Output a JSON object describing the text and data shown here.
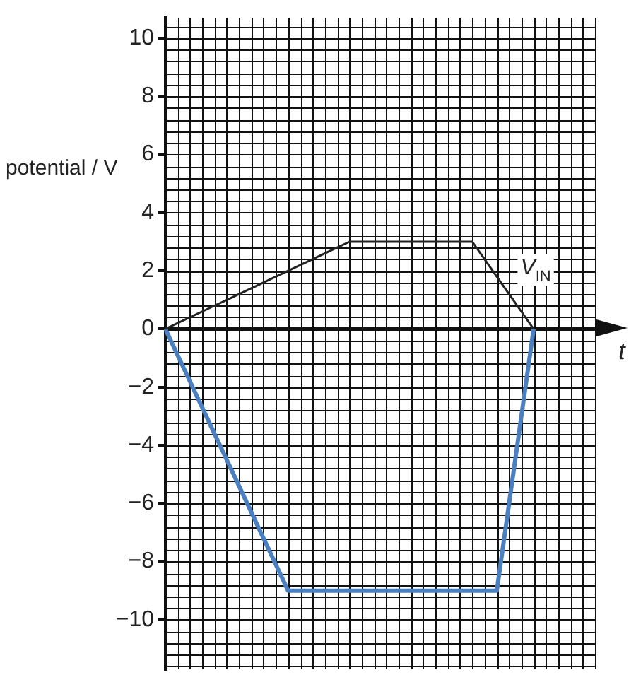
{
  "chart_data": {
    "type": "line",
    "ylabel": "potential / V",
    "xlabel": "t",
    "categories": [
      null,
      null,
      null,
      null,
      null,
      null,
      null,
      null,
      null,
      null,
      null,
      null,
      null,
      null,
      null,
      null,
      null,
      null,
      null,
      null,
      null,
      null,
      null,
      null,
      null,
      null,
      null,
      null,
      null,
      null,
      null,
      null,
      null,
      null,
      null,
      null
    ],
    "series": [
      {
        "name": "V$_{IN}$",
        "color": "#222222",
        "values": [
          0,
          0.2,
          0.4,
          0.6,
          0.8,
          1,
          1.2,
          1.4,
          1.6,
          1.8,
          2,
          2.2,
          2.4,
          2.6,
          2.8,
          3,
          3,
          3,
          3,
          3,
          3,
          3,
          3,
          3,
          3,
          3,
          2.4,
          1.8,
          1.2,
          0.6,
          0,
          null,
          null,
          null,
          null,
          null
        ]
      },
      {
        "color": "#4a7fc0",
        "values": [
          0,
          -0.9,
          -1.8,
          -2.7,
          -3.6,
          -4.5,
          -5.4,
          -6.3,
          -7.2,
          -8.1,
          -9,
          -9,
          -9,
          -9,
          -9,
          -9,
          -9,
          -9,
          -9,
          -9,
          -9,
          -9,
          -9,
          -9,
          -9,
          -9,
          -9,
          -9,
          -6,
          -3,
          0,
          null,
          null,
          null,
          null,
          null
        ]
      }
    ],
    "ylim": [
      -11.7,
      10.7
    ],
    "yticks": [
      -10,
      -8,
      -6,
      -4,
      -2,
      0,
      2,
      4,
      6,
      8,
      10
    ],
    "grid": true,
    "legend": false,
    "marker": "none",
    "line_style": "solid",
    "tick_labels": "y"
  }
}
